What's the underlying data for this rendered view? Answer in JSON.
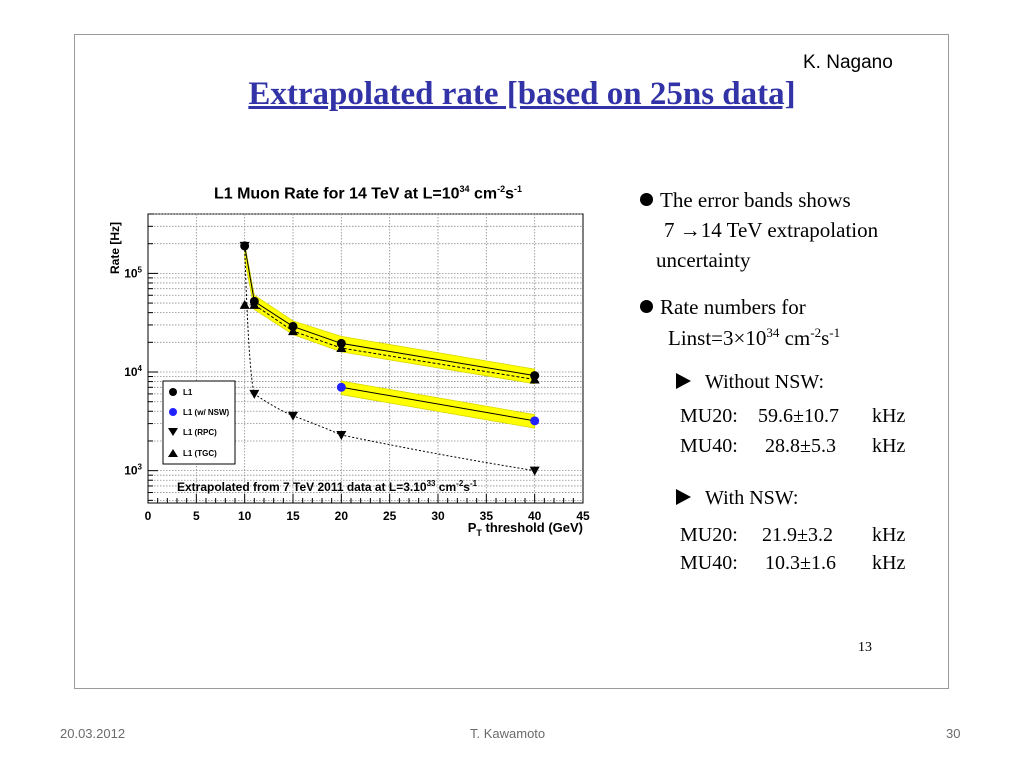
{
  "slide": {
    "author": "K. Nagano",
    "title": "Extrapolated rate [based on 25ns data]",
    "page_number": "13",
    "bullets": {
      "b1_line1": "The error bands shows",
      "b1_line2_pre": "7",
      "b1_line2_post": "14 TeV extrapolation",
      "b1_line3": "uncertainty",
      "b2_line1": "Rate numbers for",
      "b2_line2_pre": "Linst=3",
      "b2_times": "×",
      "b2_base": "10",
      "b2_exp": "34",
      "b2_unit_cm": "cm",
      "b2_cm_exp": "-2",
      "b2_unit_s": "s",
      "b2_s_exp": "-1"
    },
    "without_nsw": {
      "heading": "Without NSW:",
      "rows": [
        {
          "label": "MU20:",
          "value": "59.6",
          "pm": "±",
          "err": "10.7",
          "unit": "kHz"
        },
        {
          "label": "MU40:",
          "value": "28.8",
          "pm": "±",
          "err": "5.3",
          "unit": "kHz"
        }
      ]
    },
    "with_nsw": {
      "heading": "With NSW:",
      "rows": [
        {
          "label": "MU20:",
          "value": "21.9",
          "pm": "±",
          "err": "3.2",
          "unit": "kHz"
        },
        {
          "label": "MU40:",
          "value": "10.3",
          "pm": "±",
          "err": "1.6",
          "unit": "kHz"
        }
      ]
    }
  },
  "footer": {
    "date": "20.03.2012",
    "presenter": "T. Kawamoto",
    "slide_number": "30"
  },
  "colors": {
    "title": "#3333a8",
    "band": "#ffff00",
    "band_edge": "#d8d800",
    "nsw_marker": "#2222ff",
    "grid": "#8c8c8c"
  },
  "chart_data": {
    "type": "scatter",
    "title_main": "L1 Muon Rate for 14 TeV at L=10",
    "title_exp": "34",
    "title_unit1": " cm",
    "title_unit1_exp": "-2",
    "title_unit2": "s",
    "title_unit2_exp": "-1",
    "xlabel": "P",
    "xlabel_sub": "T",
    "xlabel_rest": " threshold (GeV)",
    "ylabel": "Rate [Hz]",
    "xlim": [
      0,
      45
    ],
    "ylim": [
      470,
      400000
    ],
    "yscale": "log",
    "grid": true,
    "x_ticks": [
      0,
      5,
      10,
      15,
      20,
      25,
      30,
      35,
      40,
      45
    ],
    "y_ticks": [
      {
        "value": 1000,
        "base": "10",
        "exp": "3"
      },
      {
        "value": 10000,
        "base": "10",
        "exp": "4"
      },
      {
        "value": 100000,
        "base": "10",
        "exp": "5"
      }
    ],
    "annotation": {
      "text": "Extrapolated from 7 TeV 2011 data at L=3.10",
      "exp": "33",
      "unit1": " cm",
      "unit1_exp": "-2",
      "unit2": "s",
      "unit2_exp": "-1"
    },
    "legend_position": "left",
    "series": [
      {
        "name": "L1",
        "marker": "circle",
        "color": "#000000",
        "x": [
          10,
          11,
          15,
          20,
          40
        ],
        "y": [
          190000,
          52000,
          29000,
          19500,
          9200
        ]
      },
      {
        "name": "L1 (w/ NSW)",
        "marker": "circle",
        "color": "#2222ff",
        "x": [
          20,
          40
        ],
        "y": [
          7000,
          3200
        ]
      },
      {
        "name": "L1 (RPC)",
        "marker": "triangle-down",
        "color": "#000000",
        "x": [
          10,
          11,
          15,
          20,
          40
        ],
        "y": [
          190000,
          6000,
          3600,
          2300,
          1000
        ]
      },
      {
        "name": "L1 (TGC)",
        "marker": "triangle-up",
        "color": "#000000",
        "x": [
          10,
          11,
          15,
          20,
          40
        ],
        "y": [
          48000,
          48000,
          26000,
          17500,
          8400
        ]
      }
    ],
    "bands": [
      {
        "x": [
          10,
          11,
          15,
          20,
          40
        ],
        "low": [
          140000,
          43000,
          24000,
          16000,
          7600
        ],
        "high": [
          200000,
          60000,
          33000,
          23000,
          10700
        ]
      },
      {
        "x": [
          20,
          40
        ],
        "low": [
          5900,
          2700
        ],
        "high": [
          8100,
          3700
        ]
      }
    ]
  }
}
